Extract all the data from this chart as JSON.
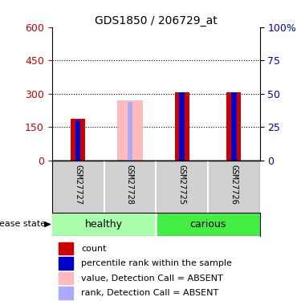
{
  "title": "GDS1850 / 206729_at",
  "samples": [
    "GSM27727",
    "GSM27728",
    "GSM27725",
    "GSM27726"
  ],
  "groups": [
    "healthy",
    "healthy",
    "carious",
    "carious"
  ],
  "ylim_left": [
    0,
    600
  ],
  "ylim_right": [
    0,
    100
  ],
  "yticks_left": [
    0,
    150,
    300,
    450,
    600
  ],
  "yticks_right": [
    0,
    25,
    50,
    75,
    100
  ],
  "ytick_labels_right": [
    "0",
    "25",
    "50",
    "75",
    "100%"
  ],
  "left_color": "#cc0000",
  "right_color": "#0000cc",
  "background_chart": "#ffffff",
  "chart_bg": "#ffffff",
  "samples_bg": "#d0d0d0",
  "healthy_color": "#aaffaa",
  "carious_color": "#44ee44",
  "red_color": "#cc0000",
  "blue_color": "#0000cc",
  "pink_color": "#ffbbbb",
  "lblue_color": "#aaaaff",
  "bars": [
    {
      "sample": "GSM27727",
      "red": 185,
      "blue_pct": 30,
      "absent": false
    },
    {
      "sample": "GSM27728",
      "red": 0,
      "blue_pct": 0,
      "absent": true,
      "pink": 270,
      "lblue_pct": 44
    },
    {
      "sample": "GSM27725",
      "red": 305,
      "blue_pct": 51,
      "absent": false
    },
    {
      "sample": "GSM27726",
      "red": 305,
      "blue_pct": 51,
      "absent": false
    }
  ],
  "legend_items": [
    {
      "label": "count",
      "color": "#cc0000"
    },
    {
      "label": "percentile rank within the sample",
      "color": "#0000cc"
    },
    {
      "label": "value, Detection Call = ABSENT",
      "color": "#ffbbbb"
    },
    {
      "label": "rank, Detection Call = ABSENT",
      "color": "#aaaaff"
    }
  ],
  "disease_state_label": "disease state",
  "group_label_healthy": "healthy",
  "group_label_carious": "carious"
}
